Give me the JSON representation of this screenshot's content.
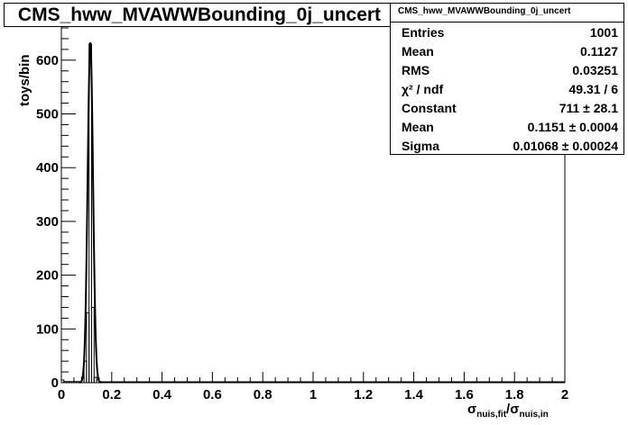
{
  "title": "CMS_hww_MVAWWBounding_0j_uncert",
  "stats": {
    "header": "CMS_hww_MVAWWBounding_0j_uncert",
    "rows": [
      {
        "label": "Entries",
        "value": "1001"
      },
      {
        "label": "Mean",
        "value": "0.1127"
      },
      {
        "label": "RMS",
        "value": "0.03251"
      },
      {
        "label": "χ² / ndf",
        "value": "49.31 / 6"
      },
      {
        "label": "Constant",
        "value": "711 ± 28.1"
      },
      {
        "label": "Mean",
        "value": "0.1151 ± 0.0004"
      },
      {
        "label": "Sigma",
        "value": "0.01068 ± 0.00024"
      }
    ]
  },
  "axis": {
    "ylabel": "toys/bin",
    "xlabel_main": "σ",
    "xlabel_sub1": "nuis,fit",
    "xlabel_sep": "/σ",
    "xlabel_sub2": "nuis,in"
  },
  "chart_data": {
    "type": "bar",
    "xlim": [
      0,
      2
    ],
    "ylim": [
      0,
      665
    ],
    "bin_width": 0.01,
    "xticks": [
      "0",
      "0.2",
      "0.4",
      "0.6",
      "0.8",
      "1",
      "1.2",
      "1.4",
      "1.6",
      "1.8",
      "2"
    ],
    "yticks": [
      "0",
      "100",
      "200",
      "300",
      "400",
      "500",
      "600"
    ],
    "histogram": {
      "x": [
        0.0,
        0.01,
        0.02,
        0.03,
        0.04,
        0.05,
        0.06,
        0.07,
        0.08,
        0.09,
        0.1,
        0.11,
        0.12,
        0.13,
        0.14,
        0.15
      ],
      "counts": [
        5,
        2,
        2,
        2,
        2,
        2,
        2,
        2,
        10,
        40,
        130,
        630,
        140,
        10,
        5,
        2
      ]
    },
    "fit": {
      "type": "gaussian",
      "constant": 711,
      "mean": 0.1151,
      "sigma": 0.01068
    }
  }
}
